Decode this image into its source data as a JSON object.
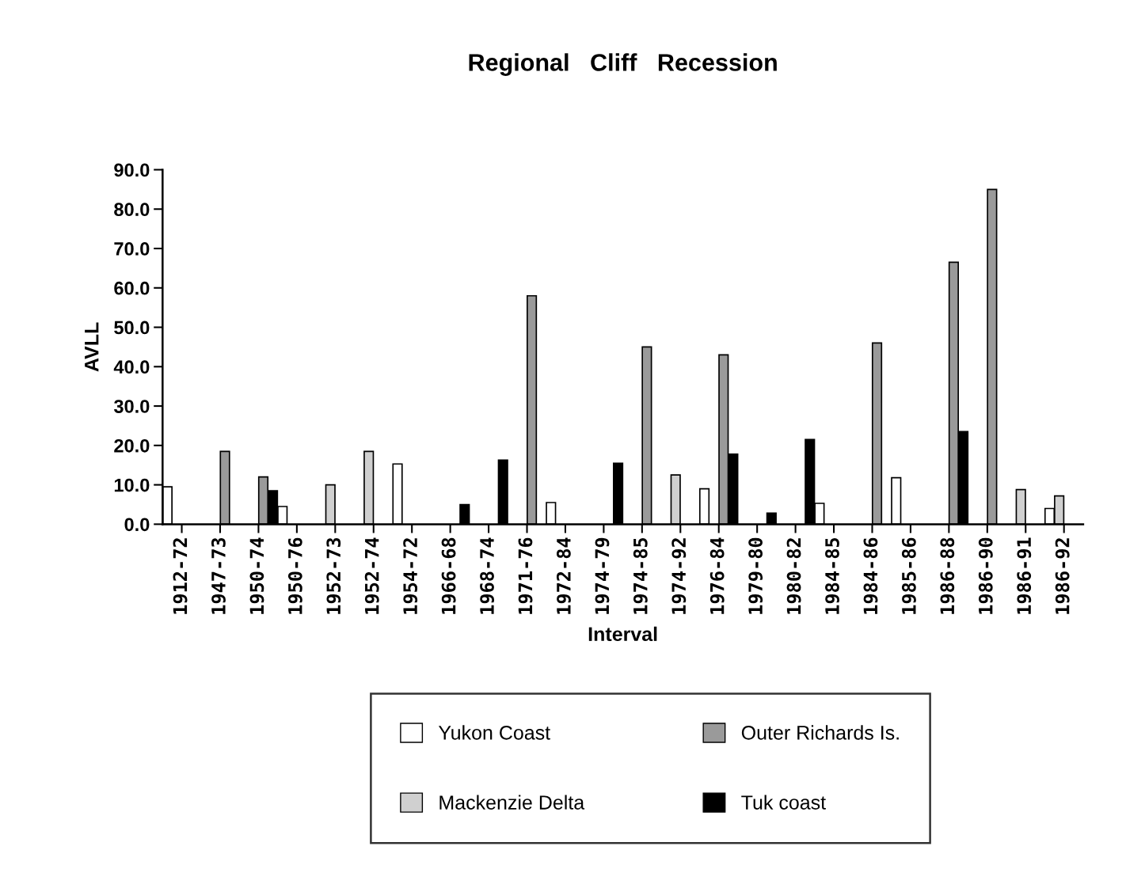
{
  "chart_data": {
    "type": "bar",
    "title": "Regional   Cliff   Recession",
    "xlabel": "Interval",
    "ylabel": "AVLL",
    "categories": [
      "1912-72",
      "1947-73",
      "1950-74",
      "1950-76",
      "1952-73",
      "1952-74",
      "1954-72",
      "1966-68",
      "1968-74",
      "1971-76",
      "1972-84",
      "1974-79",
      "1974-85",
      "1974-92",
      "1976-84",
      "1979-80",
      "1980-82",
      "1984-85",
      "1984-86",
      "1985-86",
      "1986-88",
      "1986-90",
      "1986-91",
      "1986-92"
    ],
    "series": [
      {
        "name": "Yukon Coast",
        "color": "#ffffff",
        "values": [
          9.5,
          null,
          null,
          4.5,
          null,
          null,
          15.3,
          null,
          null,
          null,
          5.5,
          null,
          null,
          null,
          9.0,
          null,
          null,
          5.3,
          null,
          11.8,
          null,
          null,
          null,
          4.0
        ]
      },
      {
        "name": "Mackenzie Delta",
        "color": "#d0d0d0",
        "values": [
          null,
          null,
          null,
          null,
          10.0,
          18.5,
          null,
          null,
          null,
          null,
          null,
          null,
          null,
          12.5,
          null,
          null,
          null,
          null,
          null,
          null,
          null,
          null,
          8.8,
          7.2
        ]
      },
      {
        "name": "Outer Richards Is.",
        "color": "#9a9a9a",
        "values": [
          null,
          18.5,
          12.0,
          null,
          null,
          null,
          null,
          null,
          null,
          58.0,
          null,
          null,
          45.0,
          null,
          43.0,
          null,
          null,
          null,
          46.0,
          null,
          66.5,
          85.0,
          null,
          null
        ]
      },
      {
        "name": "Tuk coast",
        "color": "#000000",
        "values": [
          null,
          null,
          8.5,
          null,
          null,
          null,
          null,
          5.0,
          16.3,
          null,
          null,
          15.5,
          null,
          null,
          17.8,
          2.8,
          21.5,
          null,
          null,
          null,
          23.5,
          null,
          null,
          null
        ]
      }
    ],
    "ylim": [
      0,
      90
    ],
    "yticks": [
      {
        "value": 0,
        "label": "0.0"
      },
      {
        "value": 10,
        "label": "10.0"
      },
      {
        "value": 20,
        "label": "20.0"
      },
      {
        "value": 30,
        "label": "30.0"
      },
      {
        "value": 40,
        "label": "40.0"
      },
      {
        "value": 50,
        "label": "50.0"
      },
      {
        "value": 60,
        "label": "60.0"
      },
      {
        "value": 70,
        "label": "70.0"
      },
      {
        "value": 80,
        "label": "80.0"
      },
      {
        "value": 90,
        "label": "90.0"
      }
    ],
    "grid": false,
    "legend": "bottom"
  }
}
